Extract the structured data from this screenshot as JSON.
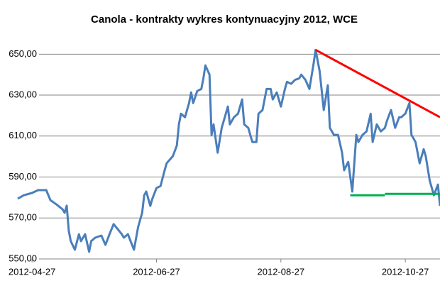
{
  "chart_data": {
    "type": "line",
    "title": "Canola - kontrakty  wykres kontynuacyjny 2012, WCE",
    "x": [
      "2012-04-20",
      "2012-04-23",
      "2012-04-27",
      "2012-04-30",
      "2012-05-04",
      "2012-05-06",
      "2012-05-09",
      "2012-05-12",
      "2012-05-13",
      "2012-05-14",
      "2012-05-15",
      "2012-05-16",
      "2012-05-18",
      "2012-05-20",
      "2012-05-21",
      "2012-05-23",
      "2012-05-25",
      "2012-05-26",
      "2012-05-28",
      "2012-05-31",
      "2012-06-02",
      "2012-06-04",
      "2012-06-06",
      "2012-06-10",
      "2012-06-11",
      "2012-06-13",
      "2012-06-15",
      "2012-06-16",
      "2012-06-18",
      "2012-06-20",
      "2012-06-21",
      "2012-06-22",
      "2012-06-24",
      "2012-06-25",
      "2012-06-27",
      "2012-06-29",
      "2012-07-01",
      "2012-07-02",
      "2012-07-05",
      "2012-07-07",
      "2012-07-08",
      "2012-07-09",
      "2012-07-11",
      "2012-07-13",
      "2012-07-14",
      "2012-07-15",
      "2012-07-17",
      "2012-07-19",
      "2012-07-20",
      "2012-07-21",
      "2012-07-23",
      "2012-07-24",
      "2012-07-25",
      "2012-07-27",
      "2012-07-29",
      "2012-07-31",
      "2012-08-01",
      "2012-08-02",
      "2012-08-04",
      "2012-08-06",
      "2012-08-08",
      "2012-08-09",
      "2012-08-11",
      "2012-08-13",
      "2012-08-15",
      "2012-08-16",
      "2012-08-18",
      "2012-08-20",
      "2012-08-22",
      "2012-08-23",
      "2012-08-25",
      "2012-08-27",
      "2012-08-29",
      "2012-08-30",
      "2012-09-01",
      "2012-09-03",
      "2012-09-05",
      "2012-09-06",
      "2012-09-08",
      "2012-09-10",
      "2012-09-12",
      "2012-09-13",
      "2012-09-15",
      "2012-09-17",
      "2012-09-19",
      "2012-09-20",
      "2012-09-22",
      "2012-09-24",
      "2012-09-26",
      "2012-09-27",
      "2012-09-29",
      "2012-10-01",
      "2012-10-03",
      "2012-10-04",
      "2012-10-06",
      "2012-10-08",
      "2012-10-10",
      "2012-10-11",
      "2012-10-13",
      "2012-10-15",
      "2012-10-17",
      "2012-10-18",
      "2012-10-20",
      "2012-10-22",
      "2012-10-24",
      "2012-10-25",
      "2012-10-27",
      "2012-10-29",
      "2012-10-30",
      "2012-11-01",
      "2012-11-03",
      "2012-11-05",
      "2012-11-06",
      "2012-11-08",
      "2012-11-10",
      "2012-11-12",
      "2012-11-13"
    ],
    "series": [
      {
        "color": "#4a7ebb",
        "values": [
          579.4,
          581.1,
          582.2,
          583.6,
          583.6,
          578.7,
          576.6,
          574.2,
          572.5,
          576.0,
          563.8,
          558.7,
          554.5,
          562.1,
          558.7,
          562.1,
          553.5,
          558.7,
          560.4,
          561.4,
          556.9,
          562.1,
          567.0,
          562.1,
          560.4,
          562.1,
          556.9,
          554.5,
          565.6,
          572.5,
          581.1,
          582.9,
          575.9,
          579.4,
          584.6,
          585.6,
          593.3,
          596.7,
          600.2,
          605.4,
          615.7,
          620.9,
          619.2,
          626.1,
          631.3,
          626.1,
          632.0,
          633.0,
          638.2,
          644.5,
          640.0,
          610.6,
          615.7,
          601.9,
          614.0,
          620.9,
          624.4,
          615.7,
          619.2,
          620.9,
          627.9,
          615.7,
          614.0,
          607.1,
          607.1,
          620.9,
          622.7,
          633.0,
          633.0,
          627.9,
          631.3,
          624.4,
          633.0,
          636.5,
          635.5,
          637.5,
          638.2,
          640.0,
          637.5,
          633.0,
          645.2,
          652.1,
          641.7,
          622.7,
          634.8,
          614.0,
          610.6,
          610.6,
          601.9,
          593.3,
          597.4,
          582.9,
          610.6,
          607.1,
          610.6,
          612.3,
          620.9,
          607.1,
          615.7,
          612.3,
          614.0,
          617.5,
          622.7,
          614.0,
          619.2,
          619.2,
          620.9,
          626.1,
          610.6,
          607.1,
          596.7,
          603.6,
          600.2,
          588.1,
          581.1,
          586.3,
          575.9
        ]
      }
    ],
    "trendlines": [
      {
        "color": "#ff0000",
        "x": [
          "2012-09-13",
          "2012-11-13"
        ],
        "values": [
          652.1,
          619.2
        ]
      },
      {
        "color": "#00b050",
        "x": [
          "2012-09-30",
          "2012-10-17"
        ],
        "values": [
          581.1,
          581.1
        ]
      },
      {
        "color": "#00b050",
        "x": [
          "2012-10-17",
          "2012-11-13"
        ],
        "values": [
          581.8,
          581.8
        ]
      }
    ],
    "xlim": [
      "2012-04-20",
      "2012-11-13"
    ],
    "xticks": [
      "2012-04-27",
      "2012-06-27",
      "2012-08-27",
      "2012-10-27"
    ],
    "ylim": [
      550,
      656
    ],
    "yticks": [
      {
        "value": 550,
        "label": "550,00"
      },
      {
        "value": 570,
        "label": "570,00"
      },
      {
        "value": 590,
        "label": "590,00"
      },
      {
        "value": 610,
        "label": "610,00"
      },
      {
        "value": 630,
        "label": "630,00"
      },
      {
        "value": 650,
        "label": "650,00"
      }
    ],
    "grid": true
  }
}
